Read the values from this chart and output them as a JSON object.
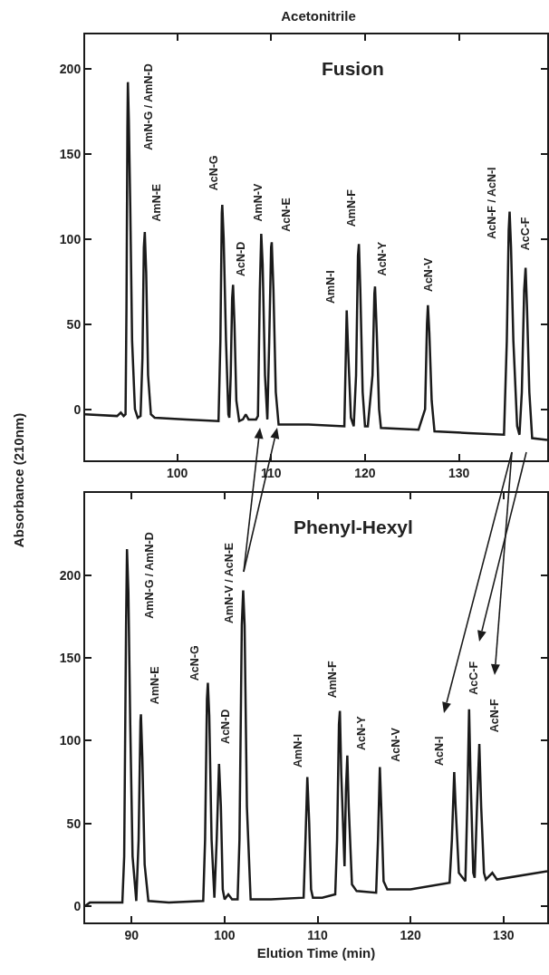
{
  "chart_data": [
    {
      "type": "line",
      "title": "Acetonitrile",
      "subtitle": "Fusion",
      "series": [
        {
          "color": "#1a1a1a",
          "x": [
            90.2,
            93.6,
            94.0,
            94.3,
            94.5,
            94.6,
            94.7,
            94.75,
            94.85,
            95.0,
            95.2,
            95.5,
            95.8,
            96.1,
            96.3,
            96.45,
            96.55,
            96.7,
            96.9,
            97.2,
            97.6,
            101,
            104.4,
            104.6,
            104.75,
            104.8,
            104.95,
            105.2,
            105.45,
            105.55,
            105.7,
            105.85,
            105.95,
            106.1,
            106.3,
            106.6,
            107.0,
            107.3,
            107.6,
            108.4,
            108.6,
            108.8,
            108.95,
            109.1,
            109.35,
            109.6,
            109.8,
            110.0,
            110.07,
            110.25,
            110.5,
            110.8,
            114,
            117.8,
            117.95,
            118.05,
            118.2,
            118.5,
            118.8,
            119.05,
            119.25,
            119.35,
            119.5,
            119.75,
            120.0,
            120.3,
            120.8,
            121.0,
            121.07,
            121.25,
            121.5,
            121.7,
            125.7,
            126.4,
            126.6,
            126.7,
            126.85,
            127.1,
            127.4,
            131,
            134.8,
            135.1,
            135.3,
            135.4,
            135.55,
            135.8,
            136.2,
            136.45,
            136.7,
            136.95,
            137.1,
            137.25,
            137.5,
            137.8,
            139.4
          ],
          "values": [
            -3,
            -4,
            -2,
            -4,
            -3,
            60,
            165,
            192,
            170,
            120,
            40,
            0,
            -5,
            -4,
            30,
            95,
            104,
            80,
            20,
            -3,
            -5,
            -6,
            -7,
            40,
            115,
            120,
            100,
            40,
            -3,
            -5,
            20,
            65,
            73,
            50,
            5,
            -7,
            -6,
            -3,
            -6,
            -6,
            -4,
            70,
            103,
            85,
            20,
            -6,
            40,
            95,
            98,
            70,
            10,
            -9,
            -9,
            -10,
            30,
            58,
            35,
            -5,
            -10,
            20,
            90,
            97,
            70,
            10,
            -10,
            -10,
            20,
            68,
            72,
            45,
            0,
            -11,
            -12,
            0,
            50,
            61,
            45,
            5,
            -13,
            -14,
            -15,
            40,
            105,
            116,
            95,
            40,
            -10,
            -15,
            10,
            70,
            83,
            60,
            10,
            -17,
            -18
          ]
        }
      ],
      "xlim": [
        90.2,
        139.4
      ],
      "xticks": [
        100,
        110,
        120,
        130
      ],
      "ylim": [
        -30,
        220
      ],
      "yticks": [
        0,
        50,
        100,
        150,
        200
      ],
      "annotations": [
        "AmN-G / AmN-D",
        "AmN-E",
        "AcN-G",
        "AcN-D",
        "AmN-V",
        "AcN-E",
        "AmN-I",
        "AmN-F",
        "AcN-Y",
        "AcN-V",
        "AcN-F / AcN-I",
        "AcC-F"
      ]
    },
    {
      "type": "line",
      "subtitle": "Phenyl-Hexyl",
      "xlabel": "Elution Time (min)",
      "ylabel": "Absorbance (210nm)",
      "series": [
        {
          "color": "#1a1a1a",
          "x": [
            85,
            85.5,
            89,
            89.2,
            89.4,
            89.5,
            89.65,
            89.85,
            90.1,
            90.5,
            90.75,
            90.95,
            91.0,
            91.15,
            91.4,
            91.8,
            94,
            97.7,
            97.9,
            98.1,
            98.2,
            98.35,
            98.6,
            98.9,
            99.15,
            99.4,
            99.6,
            99.8,
            100.0,
            100.4,
            100.8,
            101.4,
            101.6,
            101.85,
            102.0,
            102.15,
            102.4,
            102.8,
            105,
            108.5,
            108.7,
            108.9,
            109.1,
            109.3,
            109.5,
            110.5,
            111.9,
            112.1,
            112.3,
            112.4,
            112.55,
            112.9,
            113.05,
            113.2,
            113.35,
            113.7,
            114.2,
            116.3,
            116.5,
            116.7,
            116.85,
            117.1,
            117.5,
            120,
            124.2,
            124.45,
            124.7,
            124.85,
            125.2,
            125.9,
            126.1,
            126.3,
            126.45,
            126.75,
            126.9,
            127.15,
            127.4,
            127.6,
            127.9,
            128.1,
            128.8,
            129.3,
            134.7
          ],
          "values": [
            0,
            2,
            2,
            30,
            170,
            216,
            190,
            110,
            30,
            3,
            40,
            112,
            116,
            90,
            25,
            3,
            2,
            3,
            40,
            125,
            135,
            115,
            40,
            5,
            40,
            86,
            60,
            10,
            4,
            7,
            4,
            4,
            40,
            170,
            191,
            170,
            60,
            4,
            4,
            5,
            40,
            78,
            50,
            10,
            5,
            5,
            7,
            40,
            110,
            118,
            80,
            24,
            70,
            91,
            60,
            13,
            9,
            8,
            40,
            84,
            60,
            15,
            10,
            10,
            14,
            40,
            81,
            60,
            20,
            15,
            60,
            119,
            80,
            20,
            17,
            60,
            98,
            60,
            20,
            16,
            20,
            16,
            21
          ]
        }
      ],
      "xlim": [
        85,
        134.7
      ],
      "xticks": [
        90,
        100,
        110,
        120,
        130
      ],
      "ylim": [
        -10,
        250
      ],
      "yticks": [
        0,
        50,
        100,
        150,
        200
      ],
      "annotations": [
        "AmN-G / AmN-D",
        "AmN-E",
        "AcN-G",
        "AcN-D",
        "AmN-V / AcN-E",
        "AmN-I",
        "AmN-F",
        "AcN-Y",
        "AcN-V",
        "AcN-I",
        "AcC-F",
        "AcN-F"
      ]
    }
  ]
}
